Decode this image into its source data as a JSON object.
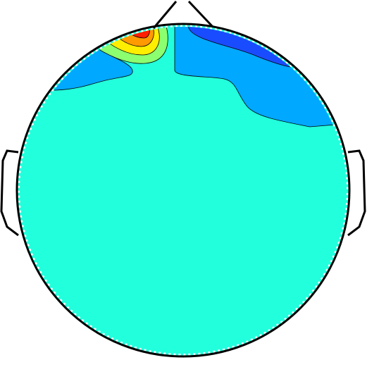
{
  "chart_data": {
    "type": "heatmap",
    "title": "",
    "xlabel": "",
    "ylabel": "",
    "colormap": "jet",
    "levels": [
      {
        "name": "deep-blue",
        "color": "#0000d8"
      },
      {
        "name": "blue",
        "color": "#1a4cff"
      },
      {
        "name": "sky-blue",
        "color": "#00a8ff"
      },
      {
        "name": "cyan",
        "color": "#22ffdc"
      },
      {
        "name": "light-green",
        "color": "#8cff70"
      },
      {
        "name": "yellow",
        "color": "#ffee00"
      },
      {
        "name": "orange",
        "color": "#ff9a00"
      },
      {
        "name": "red",
        "color": "#ff1e00"
      }
    ],
    "background_level": "cyan",
    "regions": [
      {
        "label": "frontal-right-negative",
        "levels": [
          "sky-blue",
          "blue"
        ]
      },
      {
        "label": "frontal-left-negative",
        "levels": [
          "sky-blue"
        ]
      },
      {
        "label": "frontal-left-positive-peak",
        "levels": [
          "light-green",
          "yellow",
          "orange",
          "red"
        ]
      }
    ],
    "head_outline": {
      "nose": true,
      "ears": true,
      "color": "#000000"
    }
  }
}
